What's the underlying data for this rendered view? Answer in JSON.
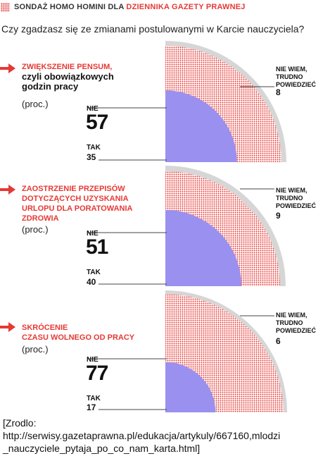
{
  "header": {
    "part1": "SONDAŻ HOMO HOMINI DLA",
    "part2": "DZIENNIKA GAZETY PRAWNEJ"
  },
  "question": "Czy zgadzasz się ze zmianami postulowanymi w Karcie nauczyciela?",
  "colors": {
    "red": "#e53935",
    "gray": "#d6d6d6",
    "purple": "#9a90f0"
  },
  "chart_data": [
    {
      "type": "pie",
      "title_red": "ZWIĘKSZENIE PENSUM,",
      "title_black": [
        "czyli obowiązkowych",
        "godzin pracy"
      ],
      "unit": "(proc.)",
      "categories": [
        "NIE",
        "TAK",
        "NIE WIEM, TRUDNO POWIEDZIEĆ"
      ],
      "values": [
        57,
        35,
        8
      ],
      "labels": {
        "nie": "NIE",
        "tak": "TAK",
        "dunno": [
          "NIE WIEM,",
          "TRUDNO",
          "POWIEDZIEĆ"
        ]
      },
      "display": {
        "nie": "57",
        "tak": "35",
        "dunno": "8"
      }
    },
    {
      "type": "pie",
      "title_red": [
        "ZAOSTRZENIE PRZEPISÓW",
        "DOTYCZĄCYCH UZYSKANIA",
        "URLOPU DLA PORATOWANIA",
        "ZDROWIA"
      ],
      "unit": "(proc.)",
      "categories": [
        "NIE",
        "TAK",
        "NIE WIEM, TRUDNO POWIEDZIEĆ"
      ],
      "values": [
        51,
        40,
        9
      ],
      "labels": {
        "nie": "NIE",
        "tak": "TAK",
        "dunno": [
          "NIE WIEM,",
          "TRUDNO",
          "POWIEDZIEĆ"
        ]
      },
      "display": {
        "nie": "51",
        "tak": "40",
        "dunno": "9"
      }
    },
    {
      "type": "pie",
      "title_red": [
        "SKRÓCENIE",
        "CZASU WOLNEGO OD PRACY"
      ],
      "unit": "(proc.)",
      "categories": [
        "NIE",
        "TAK",
        "NIE WIEM, TRUDNO POWIEDZIEĆ"
      ],
      "values": [
        77,
        17,
        6
      ],
      "labels": {
        "nie": "NIE",
        "tak": "TAK",
        "dunno": [
          "NIE WIEM,",
          "TRUDNO",
          "POWIEDZIEĆ"
        ]
      },
      "display": {
        "nie": "77",
        "tak": "17",
        "dunno": "6"
      }
    }
  ],
  "source": {
    "line1": "[Zrodlo:",
    "line2": "http://serwisy.gazetaprawna.pl/edukacja/artykuly/667160,mlodzi",
    "line3": "_nauczyciele_pytaja_po_co_nam_karta.html]"
  }
}
